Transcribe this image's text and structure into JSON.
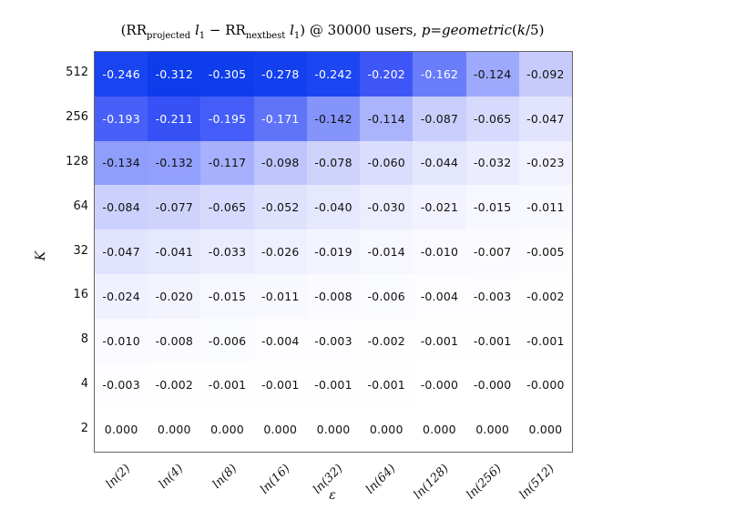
{
  "title": {
    "plain": "(RR_projected l1 − RR_nextbest l1) @ 30000 users, p=geometric(k/5)",
    "segments": [
      {
        "t": "(RR",
        "s": "normal"
      },
      {
        "t": "projected",
        "s": "sub"
      },
      {
        "t": " l",
        "s": "italic"
      },
      {
        "t": "1",
        "s": "sub"
      },
      {
        "t": " − RR",
        "s": "normal"
      },
      {
        "t": "nextbest",
        "s": "sub"
      },
      {
        "t": " l",
        "s": "italic"
      },
      {
        "t": "1",
        "s": "sub"
      },
      {
        "t": ") @ 30000 users, ",
        "s": "normal"
      },
      {
        "t": "p",
        "s": "italic"
      },
      {
        "t": "=",
        "s": "normal"
      },
      {
        "t": "geometric",
        "s": "italic"
      },
      {
        "t": "(",
        "s": "normal"
      },
      {
        "t": "k",
        "s": "italic"
      },
      {
        "t": "/5)",
        "s": "normal"
      }
    ]
  },
  "chart_data": {
    "type": "heatmap",
    "xlabel": "ε",
    "ylabel": "K",
    "x": [
      "ln(2)",
      "ln(4)",
      "ln(8)",
      "ln(16)",
      "ln(32)",
      "ln(64)",
      "ln(128)",
      "ln(256)",
      "ln(512)"
    ],
    "y": [
      "512",
      "256",
      "128",
      "64",
      "32",
      "16",
      "8",
      "4",
      "2"
    ],
    "values": [
      [
        "-0.246",
        "-0.312",
        "-0.305",
        "-0.278",
        "-0.242",
        "-0.202",
        "-0.162",
        "-0.124",
        "-0.092"
      ],
      [
        "-0.193",
        "-0.211",
        "-0.195",
        "-0.171",
        "-0.142",
        "-0.114",
        "-0.087",
        "-0.065",
        "-0.047"
      ],
      [
        "-0.134",
        "-0.132",
        "-0.117",
        "-0.098",
        "-0.078",
        "-0.060",
        "-0.044",
        "-0.032",
        "-0.023"
      ],
      [
        "-0.084",
        "-0.077",
        "-0.065",
        "-0.052",
        "-0.040",
        "-0.030",
        "-0.021",
        "-0.015",
        "-0.011"
      ],
      [
        "-0.047",
        "-0.041",
        "-0.033",
        "-0.026",
        "-0.019",
        "-0.014",
        "-0.010",
        "-0.007",
        "-0.005"
      ],
      [
        "-0.024",
        "-0.020",
        "-0.015",
        "-0.011",
        "-0.008",
        "-0.006",
        "-0.004",
        "-0.003",
        "-0.002"
      ],
      [
        "-0.010",
        "-0.008",
        "-0.006",
        "-0.004",
        "-0.003",
        "-0.002",
        "-0.001",
        "-0.001",
        "-0.001"
      ],
      [
        "-0.003",
        "-0.002",
        "-0.001",
        "-0.001",
        "-0.001",
        "-0.001",
        "-0.000",
        "-0.000",
        "-0.000"
      ],
      [
        "0.000",
        "0.000",
        "0.000",
        "0.000",
        "0.000",
        "0.000",
        "0.000",
        "0.000",
        "0.000"
      ]
    ],
    "value_range": [
      -0.312,
      0.0
    ],
    "grid": false,
    "legend": "none",
    "colormap": {
      "vmax_abs": 0.312,
      "white_text_threshold": 0.15,
      "stops": [
        {
          "t": 0.0,
          "c": "#ffffff"
        },
        {
          "t": 0.295,
          "c": "#c6cbfc"
        },
        {
          "t": 0.397,
          "c": "#9da9fc"
        },
        {
          "t": 0.519,
          "c": "#697dfa"
        },
        {
          "t": 0.647,
          "c": "#3e56f7"
        },
        {
          "t": 0.788,
          "c": "#1944f0"
        },
        {
          "t": 1.0,
          "c": "#0d3ceb"
        }
      ]
    }
  },
  "colors": {
    "background": "#ffffff",
    "spine": "#666666",
    "text_dark": "#111111",
    "text_light": "#ffffff"
  }
}
